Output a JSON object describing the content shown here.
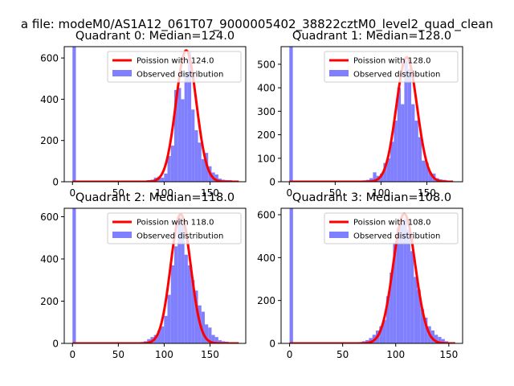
{
  "figure": {
    "suptitle": "a file: modeM0/AS1A12_061T07_9000005402_38822cztM0_level2_quad_clean"
  },
  "colors": {
    "poisson_line": "#ff0000",
    "observed_bars": "#8080ff"
  },
  "chart_data": [
    {
      "type": "bar",
      "title": "Quadrant 0: Median=124.0",
      "xlim": [
        -9,
        189
      ],
      "ylim": [
        0,
        655
      ],
      "xticks": [
        0,
        50,
        100,
        150
      ],
      "yticks": [
        0,
        200,
        400,
        600
      ],
      "bin_width": 3.7,
      "median": 124.0,
      "series": [
        {
          "name": "Poission with 124.0",
          "kind": "line",
          "peak": 637,
          "sigma": 11.1
        },
        {
          "name": "Observed distribution",
          "kind": "hist",
          "bins": [
            [
              0,
              655
            ],
            [
              3.7,
              5
            ],
            [
              7.4,
              5
            ],
            [
              11.1,
              5
            ],
            [
              14.8,
              5
            ],
            [
              18.5,
              5
            ],
            [
              22.2,
              5
            ],
            [
              25.9,
              5
            ],
            [
              29.6,
              5
            ],
            [
              33.3,
              5
            ],
            [
              37,
              5
            ],
            [
              40.7,
              5
            ],
            [
              44.4,
              5
            ],
            [
              48.1,
              5
            ],
            [
              51.8,
              5
            ],
            [
              55.5,
              5
            ],
            [
              59.2,
              5
            ],
            [
              62.9,
              5
            ],
            [
              66.6,
              5
            ],
            [
              70.3,
              5
            ],
            [
              74,
              5
            ],
            [
              77.7,
              5
            ],
            [
              81.4,
              8
            ],
            [
              85.1,
              10
            ],
            [
              88.8,
              20
            ],
            [
              92.5,
              25
            ],
            [
              96.2,
              20
            ],
            [
              99.9,
              40
            ],
            [
              103.6,
              125
            ],
            [
              107.3,
              175
            ],
            [
              111,
              445
            ],
            [
              114.7,
              455
            ],
            [
              118.4,
              400
            ],
            [
              122.1,
              530
            ],
            [
              125.8,
              630
            ],
            [
              129.5,
              350
            ],
            [
              133.2,
              250
            ],
            [
              136.9,
              190
            ],
            [
              140.6,
              110
            ],
            [
              144.3,
              140
            ],
            [
              148,
              75
            ],
            [
              151.7,
              45
            ],
            [
              155.4,
              35
            ],
            [
              159.1,
              15
            ],
            [
              162.8,
              10
            ],
            [
              166.5,
              8
            ],
            [
              170.2,
              8
            ],
            [
              173.9,
              5
            ],
            [
              177.6,
              5
            ]
          ]
        }
      ],
      "legend": "top-right"
    },
    {
      "type": "bar",
      "title": "Quadrant 1: Median=128.0",
      "xlim": [
        -9,
        189
      ],
      "ylim": [
        0,
        575
      ],
      "xticks": [
        0,
        50,
        100,
        150
      ],
      "yticks": [
        0,
        100,
        200,
        300,
        400,
        500
      ],
      "bin_width": 3.8,
      "median": 128.0,
      "series": [
        {
          "name": "Poission with 128.0",
          "kind": "line",
          "peak": 530,
          "sigma": 11.3
        },
        {
          "name": "Observed distribution",
          "kind": "hist",
          "bins": [
            [
              0,
              575
            ],
            [
              3.8,
              3
            ],
            [
              7.6,
              3
            ],
            [
              11.4,
              3
            ],
            [
              15.2,
              3
            ],
            [
              19,
              3
            ],
            [
              22.8,
              3
            ],
            [
              26.6,
              3
            ],
            [
              30.4,
              3
            ],
            [
              34.2,
              3
            ],
            [
              38,
              3
            ],
            [
              41.8,
              3
            ],
            [
              45.6,
              3
            ],
            [
              49.4,
              3
            ],
            [
              53.2,
              3
            ],
            [
              57,
              3
            ],
            [
              60.8,
              3
            ],
            [
              64.6,
              3
            ],
            [
              68.4,
              3
            ],
            [
              72.2,
              3
            ],
            [
              76,
              3
            ],
            [
              79.8,
              6
            ],
            [
              83.6,
              8
            ],
            [
              87.4,
              15
            ],
            [
              91.2,
              40
            ],
            [
              95,
              25
            ],
            [
              98.8,
              35
            ],
            [
              102.6,
              80
            ],
            [
              106.4,
              100
            ],
            [
              110.2,
              170
            ],
            [
              114,
              260
            ],
            [
              117.8,
              400
            ],
            [
              121.6,
              330
            ],
            [
              125.4,
              515
            ],
            [
              129.2,
              480
            ],
            [
              133,
              330
            ],
            [
              136.8,
              260
            ],
            [
              140.6,
              190
            ],
            [
              144.4,
              90
            ],
            [
              148.2,
              80
            ],
            [
              152,
              40
            ],
            [
              155.8,
              35
            ],
            [
              159.6,
              15
            ],
            [
              163.4,
              10
            ],
            [
              167.2,
              8
            ],
            [
              171,
              5
            ],
            [
              174.8,
              3
            ]
          ]
        }
      ],
      "legend": "top-right"
    },
    {
      "type": "bar",
      "title": "Quadrant 2: Median=118.0",
      "xlim": [
        -9,
        189
      ],
      "ylim": [
        0,
        640
      ],
      "xticks": [
        0,
        50,
        100,
        150
      ],
      "yticks": [
        0,
        200,
        400,
        600
      ],
      "bin_width": 3.7,
      "median": 118.0,
      "series": [
        {
          "name": "Poission with 118.0",
          "kind": "line",
          "peak": 612,
          "sigma": 10.9
        },
        {
          "name": "Observed distribution",
          "kind": "hist",
          "bins": [
            [
              0,
              640
            ],
            [
              3.7,
              4
            ],
            [
              7.4,
              4
            ],
            [
              11.1,
              4
            ],
            [
              14.8,
              4
            ],
            [
              18.5,
              4
            ],
            [
              22.2,
              4
            ],
            [
              25.9,
              4
            ],
            [
              29.6,
              4
            ],
            [
              33.3,
              4
            ],
            [
              37,
              4
            ],
            [
              40.7,
              4
            ],
            [
              44.4,
              4
            ],
            [
              48.1,
              4
            ],
            [
              51.8,
              4
            ],
            [
              55.5,
              4
            ],
            [
              59.2,
              4
            ],
            [
              62.9,
              4
            ],
            [
              66.6,
              4
            ],
            [
              70.3,
              4
            ],
            [
              74,
              6
            ],
            [
              77.7,
              10
            ],
            [
              81.4,
              20
            ],
            [
              85.1,
              30
            ],
            [
              88.8,
              40
            ],
            [
              92.5,
              60
            ],
            [
              96.2,
              80
            ],
            [
              99.9,
              130
            ],
            [
              103.6,
              230
            ],
            [
              107.3,
              370
            ],
            [
              111,
              460
            ],
            [
              114.7,
              600
            ],
            [
              118.4,
              560
            ],
            [
              122.1,
              420
            ],
            [
              125.8,
              370
            ],
            [
              129.5,
              300
            ],
            [
              133.2,
              250
            ],
            [
              136.9,
              180
            ],
            [
              140.6,
              150
            ],
            [
              144.3,
              90
            ],
            [
              148,
              75
            ],
            [
              151.7,
              40
            ],
            [
              155.4,
              30
            ],
            [
              159.1,
              15
            ],
            [
              162.8,
              10
            ],
            [
              166.5,
              8
            ],
            [
              170.2,
              5
            ],
            [
              173.9,
              4
            ],
            [
              177.6,
              4
            ]
          ]
        }
      ],
      "legend": "top-right"
    },
    {
      "type": "bar",
      "title": "Quadrant 3: Median=108.0",
      "xlim": [
        -8,
        163
      ],
      "ylim": [
        0,
        630
      ],
      "xticks": [
        0,
        50,
        100,
        150
      ],
      "yticks": [
        0,
        200,
        400,
        600
      ],
      "bin_width": 3.25,
      "median": 108.0,
      "series": [
        {
          "name": "Poission with 108.0",
          "kind": "line",
          "peak": 605,
          "sigma": 10.4
        },
        {
          "name": "Observed distribution",
          "kind": "hist",
          "bins": [
            [
              0,
              630
            ],
            [
              3.25,
              4
            ],
            [
              6.5,
              4
            ],
            [
              9.75,
              4
            ],
            [
              13,
              4
            ],
            [
              16.25,
              4
            ],
            [
              19.5,
              4
            ],
            [
              22.75,
              4
            ],
            [
              26,
              4
            ],
            [
              29.25,
              4
            ],
            [
              32.5,
              4
            ],
            [
              35.75,
              4
            ],
            [
              39,
              4
            ],
            [
              42.25,
              4
            ],
            [
              45.5,
              4
            ],
            [
              48.75,
              4
            ],
            [
              52,
              4
            ],
            [
              55.25,
              4
            ],
            [
              58.5,
              4
            ],
            [
              61.75,
              4
            ],
            [
              65,
              6
            ],
            [
              68.25,
              10
            ],
            [
              71.5,
              15
            ],
            [
              74.75,
              25
            ],
            [
              78,
              40
            ],
            [
              81.25,
              60
            ],
            [
              84.5,
              80
            ],
            [
              87.75,
              110
            ],
            [
              91,
              220
            ],
            [
              94.25,
              330
            ],
            [
              97.5,
              470
            ],
            [
              100.75,
              540
            ],
            [
              104,
              560
            ],
            [
              107.25,
              580
            ],
            [
              110.5,
              530
            ],
            [
              113.75,
              430
            ],
            [
              117,
              310
            ],
            [
              120.25,
              250
            ],
            [
              123.5,
              160
            ],
            [
              126.75,
              120
            ],
            [
              130,
              80
            ],
            [
              133.25,
              60
            ],
            [
              136.5,
              40
            ],
            [
              139.75,
              30
            ],
            [
              143,
              20
            ],
            [
              146.25,
              10
            ],
            [
              149.5,
              5
            ],
            [
              152.75,
              4
            ]
          ]
        }
      ],
      "legend": "top-right"
    }
  ]
}
